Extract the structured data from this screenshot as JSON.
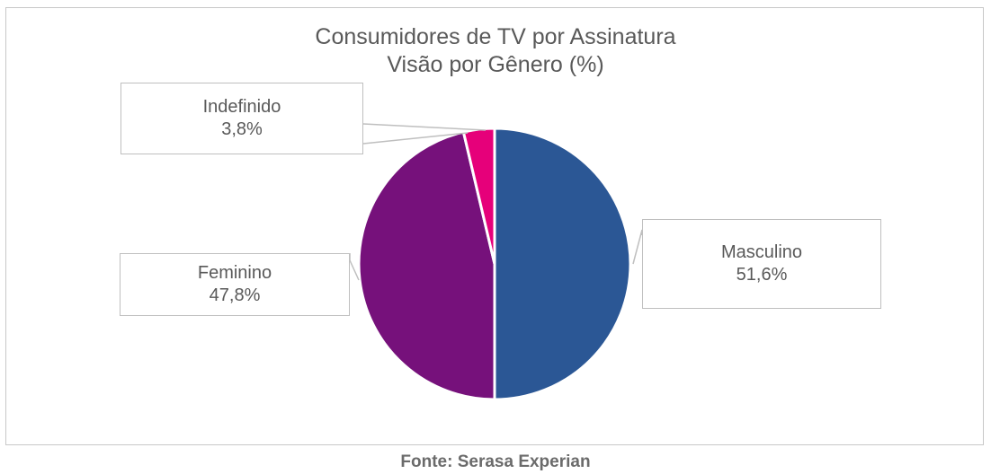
{
  "chart_data": {
    "type": "pie",
    "title": "Consumidores de TV por Assinatura",
    "subtitle": "Visão por Gênero (%)",
    "slices": [
      {
        "label": "Masculino",
        "value": 51.6,
        "value_label": "51,6%",
        "color": "#2b5795"
      },
      {
        "label": "Feminino",
        "value": 47.8,
        "value_label": "47,8%",
        "color": "#76117b"
      },
      {
        "label": "Indefinido",
        "value": 3.8,
        "value_label": "3,8%",
        "color": "#e6007a"
      }
    ],
    "start_angle": "12 o'clock",
    "direction": "clockwise",
    "data_labels": "callouts"
  },
  "source": "Fonte: Serasa Experian"
}
